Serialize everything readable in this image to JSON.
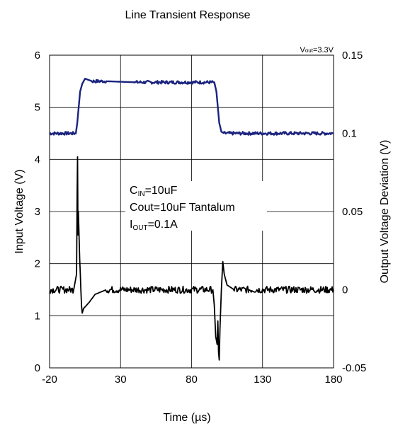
{
  "chart_data": {
    "type": "line",
    "title": "Line Transient Response",
    "condition_label": {
      "base": "V",
      "sub": "out",
      "rest": "=3.3V"
    },
    "xlabel": "Time (µs)",
    "ylabel_left": "Input Voltage (V)",
    "ylabel_right": "Output Voltage Deviation (V)",
    "xlim": [
      -20,
      180
    ],
    "ylim_left": [
      0,
      6
    ],
    "ylim_right": [
      -0.05,
      0.15
    ],
    "x_ticks": [
      "-20",
      "30",
      "80",
      "130",
      "180"
    ],
    "y_ticks_left": [
      "0",
      "1",
      "2",
      "3",
      "4",
      "5",
      "6"
    ],
    "y_ticks_right": [
      "-0.05",
      "0",
      "0.05",
      "0.1",
      "0.15"
    ],
    "grid": true,
    "annotation": [
      {
        "base": "C",
        "sub": "IN",
        "rest": "=10uF"
      },
      {
        "base": "Cout=10uF Tantalum",
        "sub": "",
        "rest": ""
      },
      {
        "base": "I",
        "sub": "OUT",
        "rest": "=0.1A"
      }
    ],
    "series": [
      {
        "axis": "left",
        "color": "#1a237e",
        "x": [
          -20,
          -1.5,
          -0.5,
          0.5,
          1.5,
          3,
          5,
          10,
          20,
          40,
          60,
          80,
          96,
          97.5,
          98.5,
          99.5,
          101,
          103,
          110,
          130,
          160,
          180
        ],
        "y": [
          4.5,
          4.5,
          4.7,
          5.0,
          5.3,
          5.45,
          5.55,
          5.5,
          5.5,
          5.48,
          5.48,
          5.48,
          5.48,
          5.3,
          5.0,
          4.7,
          4.53,
          4.5,
          4.5,
          4.5,
          4.5,
          4.5
        ]
      },
      {
        "axis": "right",
        "color": "#000000",
        "x": [
          -20,
          -6,
          -3,
          -1,
          -0.6,
          -0.3,
          0,
          0.3,
          1.2,
          2.5,
          3,
          4,
          6,
          8,
          12,
          20,
          40,
          60,
          80,
          95,
          96,
          97,
          98,
          98.5,
          99,
          99.5,
          100,
          101,
          102,
          103,
          105,
          110,
          130,
          160,
          180
        ],
        "y": [
          0.0,
          0.0,
          0.0,
          0.01,
          0.06,
          0.085,
          0.035,
          0.05,
          0.02,
          -0.01,
          -0.015,
          -0.012,
          -0.01,
          -0.008,
          -0.003,
          0.0,
          0.0,
          0.0,
          0.0,
          0.0,
          -0.01,
          -0.03,
          -0.035,
          -0.02,
          -0.04,
          -0.045,
          -0.025,
          0.0,
          0.018,
          0.01,
          0.003,
          0.0,
          0.0,
          0.0,
          0.0
        ]
      }
    ]
  }
}
